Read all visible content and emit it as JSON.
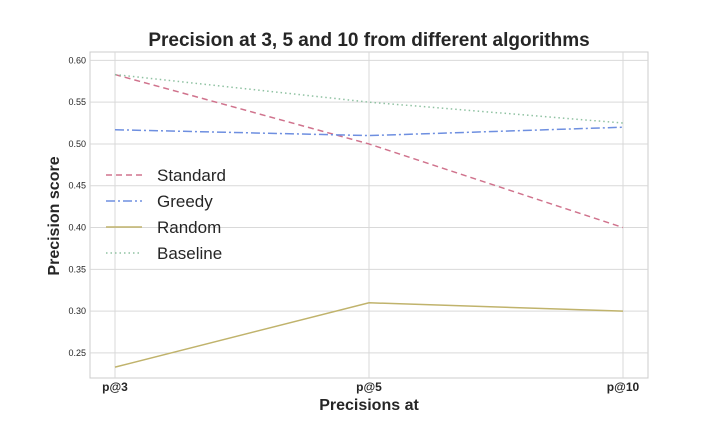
{
  "chart_data": {
    "type": "line",
    "title": "Precision at 3, 5 and 10 from different algorithms",
    "xlabel": "Precisions at",
    "ylabel": "Precision score",
    "categories": [
      "p@3",
      "p@5",
      "p@10"
    ],
    "ylim": [
      0.22,
      0.61
    ],
    "yticks": [
      "0.25",
      "0.30",
      "0.35",
      "0.40",
      "0.45",
      "0.50",
      "0.55",
      "0.60"
    ],
    "grid": true,
    "legend_position": "center-left",
    "series": [
      {
        "name": "Standard",
        "values": [
          0.583,
          0.5,
          0.4
        ],
        "color": "#d0738d",
        "style": "dashed"
      },
      {
        "name": "Greedy",
        "values": [
          0.517,
          0.51,
          0.52
        ],
        "color": "#6e8fe0",
        "style": "dashdot"
      },
      {
        "name": "Random",
        "values": [
          0.233,
          0.31,
          0.3
        ],
        "color": "#c0b36c",
        "style": "solid"
      },
      {
        "name": "Baseline",
        "values": [
          0.583,
          0.55,
          0.525
        ],
        "color": "#8fc2a2",
        "style": "dotted"
      }
    ]
  }
}
